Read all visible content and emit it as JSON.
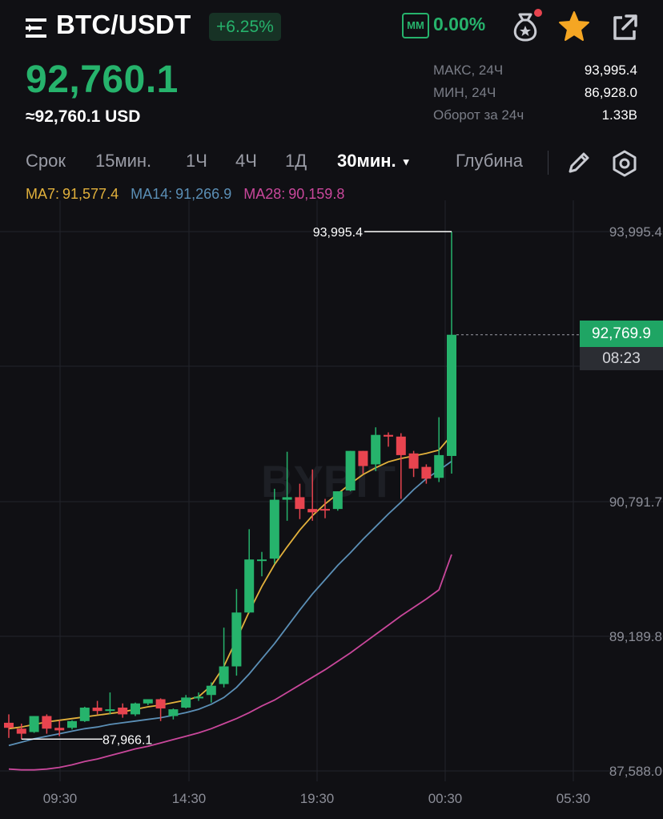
{
  "header": {
    "pair": "BTC/USDT",
    "change": "+6.25%",
    "mm_label": "MM",
    "mm_value": "0.00%"
  },
  "price": {
    "last": "92,760.1",
    "usd": "≈92,760.1 USD"
  },
  "stats": [
    {
      "label": "МАКС, 24Ч",
      "value": "93,995.4"
    },
    {
      "label": "МИН, 24Ч",
      "value": "86,928.0"
    },
    {
      "label": "Оборот за 24ч",
      "value": "1.33B"
    }
  ],
  "timeframes": {
    "term": "Срок",
    "items": [
      "15мин.",
      "1Ч",
      "4Ч",
      "1Д"
    ],
    "active": "30мин.",
    "depth": "Глубина"
  },
  "ma": {
    "ma7_label": "MA7:",
    "ma7": "91,577.4",
    "ma14_label": "MA14:",
    "ma14": "91,266.9",
    "ma28_label": "MA28:",
    "ma28": "90,159.8"
  },
  "colors": {
    "up": "#26b36c",
    "down": "#e8444f",
    "ma7": "#e2b13c",
    "ma14": "#5b8fb6",
    "ma28": "#c9479b"
  },
  "chart_data": {
    "type": "candlestick",
    "y_ticks": [
      "93,995.4",
      "90,791.7",
      "89,189.8",
      "87,588.0"
    ],
    "x_ticks": [
      "09:30",
      "14:30",
      "19:30",
      "00:30",
      "05:30"
    ],
    "ylim": [
      87588.0,
      93995.4
    ],
    "high_marker": "93,995.4",
    "low_marker": "87,966.1",
    "current_price_tag": "92,769.9",
    "countdown": "08:23",
    "watermark": "BYBIT",
    "candles": [
      {
        "o": 88160,
        "h": 88260,
        "c": 88100,
        "l": 87980
      },
      {
        "o": 88090,
        "h": 88150,
        "c": 88030,
        "l": 87966.1
      },
      {
        "o": 88050,
        "h": 88240,
        "c": 88240,
        "l": 88040
      },
      {
        "o": 88240,
        "h": 88260,
        "c": 88090,
        "l": 88030
      },
      {
        "o": 88100,
        "h": 88190,
        "c": 88070,
        "l": 88000
      },
      {
        "o": 88100,
        "h": 88190,
        "c": 88180,
        "l": 88080
      },
      {
        "o": 88180,
        "h": 88350,
        "c": 88340,
        "l": 88170
      },
      {
        "o": 88340,
        "h": 88420,
        "c": 88300,
        "l": 88260
      },
      {
        "o": 88300,
        "h": 88520,
        "c": 88320,
        "l": 88260
      },
      {
        "o": 88340,
        "h": 88390,
        "c": 88260,
        "l": 88220
      },
      {
        "o": 88260,
        "h": 88400,
        "c": 88390,
        "l": 88240
      },
      {
        "o": 88390,
        "h": 88440,
        "c": 88440,
        "l": 88370
      },
      {
        "o": 88440,
        "h": 88450,
        "c": 88330,
        "l": 88180
      },
      {
        "o": 88240,
        "h": 88330,
        "c": 88320,
        "l": 88200
      },
      {
        "o": 88340,
        "h": 88490,
        "c": 88460,
        "l": 88330
      },
      {
        "o": 88450,
        "h": 88520,
        "c": 88470,
        "l": 88420
      },
      {
        "o": 88490,
        "h": 88640,
        "c": 88600,
        "l": 88400
      },
      {
        "o": 88620,
        "h": 89290,
        "c": 88830,
        "l": 88580
      },
      {
        "o": 88830,
        "h": 89750,
        "c": 89470,
        "l": 88720
      },
      {
        "o": 89470,
        "h": 90460,
        "c": 90100,
        "l": 89460
      },
      {
        "o": 90100,
        "h": 90190,
        "c": 90100,
        "l": 89900
      },
      {
        "o": 90110,
        "h": 90940,
        "c": 90810,
        "l": 90050
      },
      {
        "o": 90810,
        "h": 91380,
        "c": 90840,
        "l": 90560
      },
      {
        "o": 90840,
        "h": 91000,
        "c": 90700,
        "l": 90580
      },
      {
        "o": 90700,
        "h": 91170,
        "c": 90660,
        "l": 90560
      },
      {
        "o": 90700,
        "h": 90820,
        "c": 90690,
        "l": 90590
      },
      {
        "o": 90700,
        "h": 90880,
        "c": 90910,
        "l": 90680
      },
      {
        "o": 90920,
        "h": 91330,
        "c": 91390,
        "l": 90910
      },
      {
        "o": 91390,
        "h": 91330,
        "c": 91210,
        "l": 91120
      },
      {
        "o": 91230,
        "h": 91670,
        "c": 91580,
        "l": 91150
      },
      {
        "o": 91580,
        "h": 91610,
        "c": 91560,
        "l": 91440
      },
      {
        "o": 91560,
        "h": 91600,
        "c": 91340,
        "l": 90820
      },
      {
        "o": 91360,
        "h": 91390,
        "c": 91180,
        "l": 91080
      },
      {
        "o": 91200,
        "h": 91230,
        "c": 91060,
        "l": 91000
      },
      {
        "o": 91070,
        "h": 91790,
        "c": 91340,
        "l": 91020
      },
      {
        "o": 91330,
        "h": 93995.4,
        "c": 92769.9,
        "l": 91120
      }
    ],
    "ma7": [
      88090,
      88110,
      88140,
      88170,
      88190,
      88210,
      88230,
      88250,
      88270,
      88290,
      88320,
      88350,
      88370,
      88400,
      88430,
      88470,
      88600,
      88830,
      89150,
      89480,
      89780,
      90040,
      90250,
      90450,
      90620,
      90760,
      90880,
      91000,
      91110,
      91190,
      91260,
      91300,
      91330,
      91360,
      91400,
      91577.4
    ],
    "ma14": [
      87890,
      87930,
      87970,
      88000,
      88030,
      88060,
      88090,
      88110,
      88140,
      88160,
      88180,
      88200,
      88220,
      88250,
      88280,
      88320,
      88380,
      88460,
      88580,
      88740,
      88920,
      89100,
      89300,
      89500,
      89690,
      89860,
      90030,
      90180,
      90340,
      90490,
      90640,
      90780,
      90930,
      91060,
      91160,
      91266.9
    ],
    "ma28": [
      87610,
      87600,
      87600,
      87610,
      87630,
      87660,
      87700,
      87730,
      87770,
      87810,
      87850,
      87880,
      87920,
      87960,
      88000,
      88040,
      88090,
      88150,
      88210,
      88280,
      88360,
      88430,
      88520,
      88610,
      88700,
      88790,
      88890,
      88990,
      89100,
      89210,
      89320,
      89430,
      89530,
      89630,
      89740,
      90159.8
    ]
  }
}
